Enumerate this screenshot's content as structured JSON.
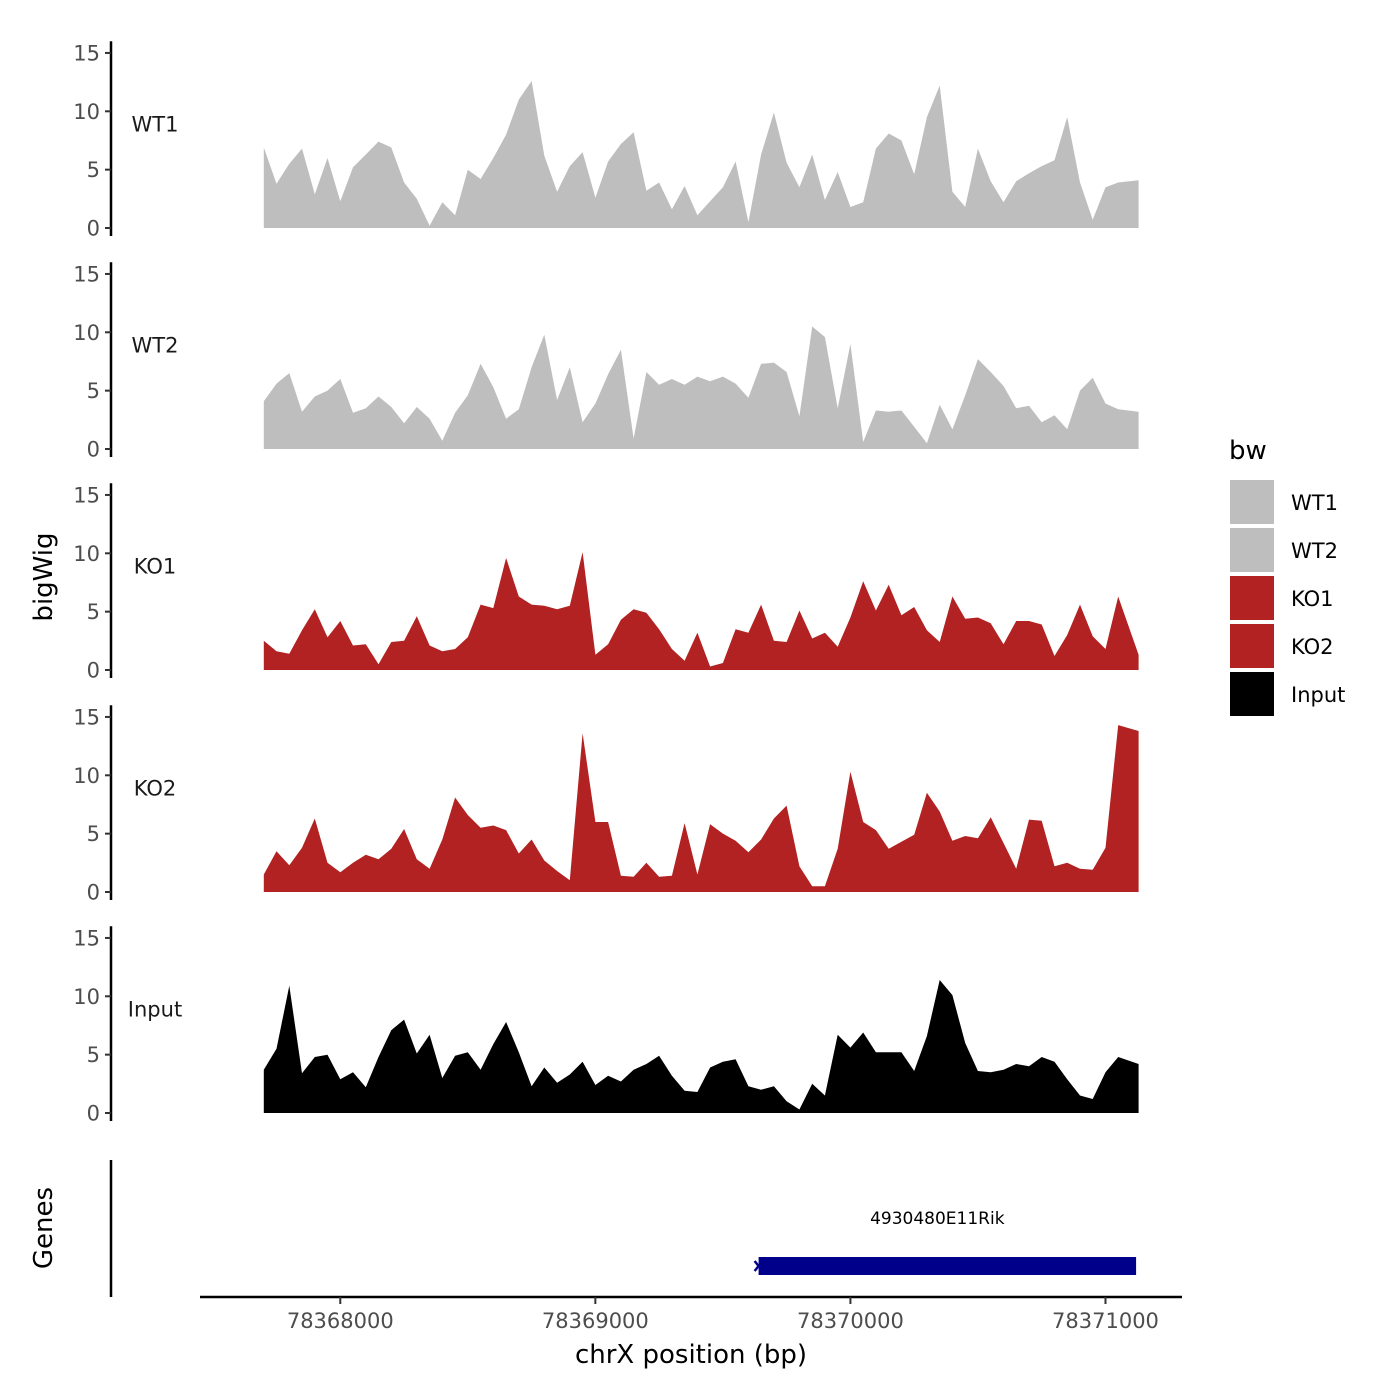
{
  "chart_data": {
    "type": "area",
    "ylabel": "bigWig",
    "xlabel": "chrX position (bp)",
    "ylim": [
      0,
      16
    ],
    "yticks": [
      0,
      5,
      10,
      15
    ],
    "xlim": [
      78367450,
      78371300
    ],
    "xticks": [
      78368000,
      78369000,
      78370000,
      78371000
    ],
    "legend": {
      "title": "bw",
      "position": "right",
      "entries": [
        {
          "label": "WT1",
          "color": "#bebebe"
        },
        {
          "label": "WT2",
          "color": "#bebebe"
        },
        {
          "label": "KO1",
          "color": "#b22222"
        },
        {
          "label": "KO2",
          "color": "#b22222"
        },
        {
          "label": "Input",
          "color": "#000000"
        }
      ]
    },
    "series": [
      {
        "name": "WT1",
        "color": "#bebebe",
        "x_start": 78367700,
        "x_end": 78371130,
        "step": 50,
        "values": [
          6.9,
          3.8,
          5.5,
          6.8,
          2.9,
          6.0,
          2.3,
          5.2,
          6.3,
          7.4,
          6.9,
          3.9,
          2.5,
          0.2,
          2.2,
          1.1,
          5.0,
          4.2,
          6.0,
          8.0,
          11.0,
          12.6,
          6.2,
          3.1,
          5.3,
          6.5,
          2.6,
          5.7,
          7.2,
          8.2,
          3.2,
          3.9,
          1.6,
          3.6,
          1.1,
          2.3,
          3.5,
          5.7,
          0.5,
          6.3,
          9.9,
          5.6,
          3.5,
          6.3,
          2.4,
          4.8,
          1.8,
          2.2,
          6.8,
          8.1,
          7.5,
          4.6,
          9.5,
          12.2,
          3.1,
          1.8,
          6.8,
          4.0,
          2.2,
          4.0,
          4.7,
          5.3,
          5.8,
          9.5,
          3.9,
          0.7,
          3.5,
          3.9,
          4.1
        ]
      },
      {
        "name": "WT2",
        "color": "#bebebe",
        "x_start": 78367700,
        "x_end": 78371130,
        "step": 50,
        "values": [
          4.1,
          5.6,
          6.5,
          3.2,
          4.5,
          5.0,
          6.0,
          3.1,
          3.5,
          4.5,
          3.6,
          2.2,
          3.6,
          2.6,
          0.7,
          3.1,
          4.6,
          7.3,
          5.3,
          2.6,
          3.4,
          7.0,
          9.8,
          4.2,
          7.0,
          2.3,
          3.9,
          6.4,
          8.5,
          0.9,
          6.6,
          5.5,
          6.0,
          5.5,
          6.2,
          5.8,
          6.2,
          5.6,
          4.4,
          7.3,
          7.4,
          6.6,
          2.8,
          10.5,
          9.6,
          3.5,
          9.0,
          0.6,
          3.3,
          3.2,
          3.3,
          1.9,
          0.5,
          3.8,
          1.7,
          4.6,
          7.7,
          6.6,
          5.4,
          3.5,
          3.7,
          2.3,
          2.9,
          1.7,
          5.0,
          6.1,
          3.9,
          3.4,
          3.2
        ]
      },
      {
        "name": "KO1",
        "color": "#b22222",
        "x_start": 78367700,
        "x_end": 78371130,
        "step": 50,
        "values": [
          2.5,
          1.6,
          1.4,
          3.4,
          5.2,
          2.8,
          4.2,
          2.1,
          2.2,
          0.5,
          2.4,
          2.5,
          4.6,
          2.1,
          1.6,
          1.8,
          2.8,
          5.6,
          5.3,
          9.6,
          6.3,
          5.6,
          5.5,
          5.2,
          5.5,
          10.1,
          1.3,
          2.2,
          4.3,
          5.2,
          4.9,
          3.5,
          1.8,
          0.8,
          3.2,
          0.3,
          0.6,
          3.5,
          3.2,
          5.6,
          2.5,
          2.4,
          5.1,
          2.7,
          3.2,
          2.0,
          4.5,
          7.6,
          5.1,
          7.3,
          4.7,
          5.4,
          3.4,
          2.4,
          6.3,
          4.4,
          4.5,
          4.0,
          2.2,
          4.2,
          4.2,
          3.9,
          1.2,
          3.0,
          5.6,
          2.9,
          1.8,
          6.3,
          1.3
        ]
      },
      {
        "name": "KO2",
        "color": "#b22222",
        "x_start": 78367700,
        "x_end": 78371130,
        "step": 50,
        "values": [
          1.5,
          3.5,
          2.3,
          3.8,
          6.3,
          2.5,
          1.7,
          2.5,
          3.2,
          2.8,
          3.7,
          5.4,
          2.8,
          2.0,
          4.5,
          8.1,
          6.6,
          5.5,
          5.7,
          5.3,
          3.3,
          4.5,
          2.7,
          1.8,
          1.0,
          13.6,
          6.0,
          6.0,
          1.4,
          1.3,
          2.5,
          1.3,
          1.4,
          5.9,
          1.5,
          5.8,
          5.0,
          4.4,
          3.4,
          4.5,
          6.3,
          7.4,
          2.2,
          0.5,
          0.5,
          3.7,
          10.3,
          6.0,
          5.3,
          3.7,
          4.3,
          4.9,
          8.5,
          6.9,
          4.4,
          4.8,
          4.6,
          6.4,
          4.2,
          2.0,
          6.2,
          6.1,
          2.2,
          2.5,
          2.0,
          1.9,
          3.8,
          14.3,
          13.8
        ]
      },
      {
        "name": "Input",
        "color": "#000000",
        "x_start": 78367700,
        "x_end": 78371130,
        "step": 50,
        "values": [
          3.7,
          5.5,
          10.9,
          3.4,
          4.8,
          5.0,
          2.9,
          3.5,
          2.2,
          4.8,
          7.1,
          8.0,
          5.1,
          6.7,
          3.0,
          4.9,
          5.2,
          3.7,
          5.9,
          7.8,
          5.2,
          2.3,
          3.9,
          2.6,
          3.3,
          4.4,
          2.4,
          3.2,
          2.7,
          3.7,
          4.2,
          4.9,
          3.2,
          1.9,
          1.8,
          3.9,
          4.4,
          4.6,
          2.3,
          2.0,
          2.3,
          1.0,
          0.3,
          2.5,
          1.5,
          6.7,
          5.6,
          6.9,
          5.2,
          5.2,
          5.2,
          3.6,
          6.6,
          11.4,
          10.1,
          6.0,
          3.6,
          3.5,
          3.7,
          4.2,
          4.0,
          4.8,
          4.4,
          2.9,
          1.5,
          1.2,
          3.5,
          4.8,
          4.2
        ]
      }
    ],
    "gene_track": {
      "label": "Genes",
      "genes": [
        {
          "name": "4930480E11Rik",
          "start": 78369640,
          "end": 78371120,
          "strand": "+",
          "color": "#00008b"
        }
      ]
    }
  }
}
